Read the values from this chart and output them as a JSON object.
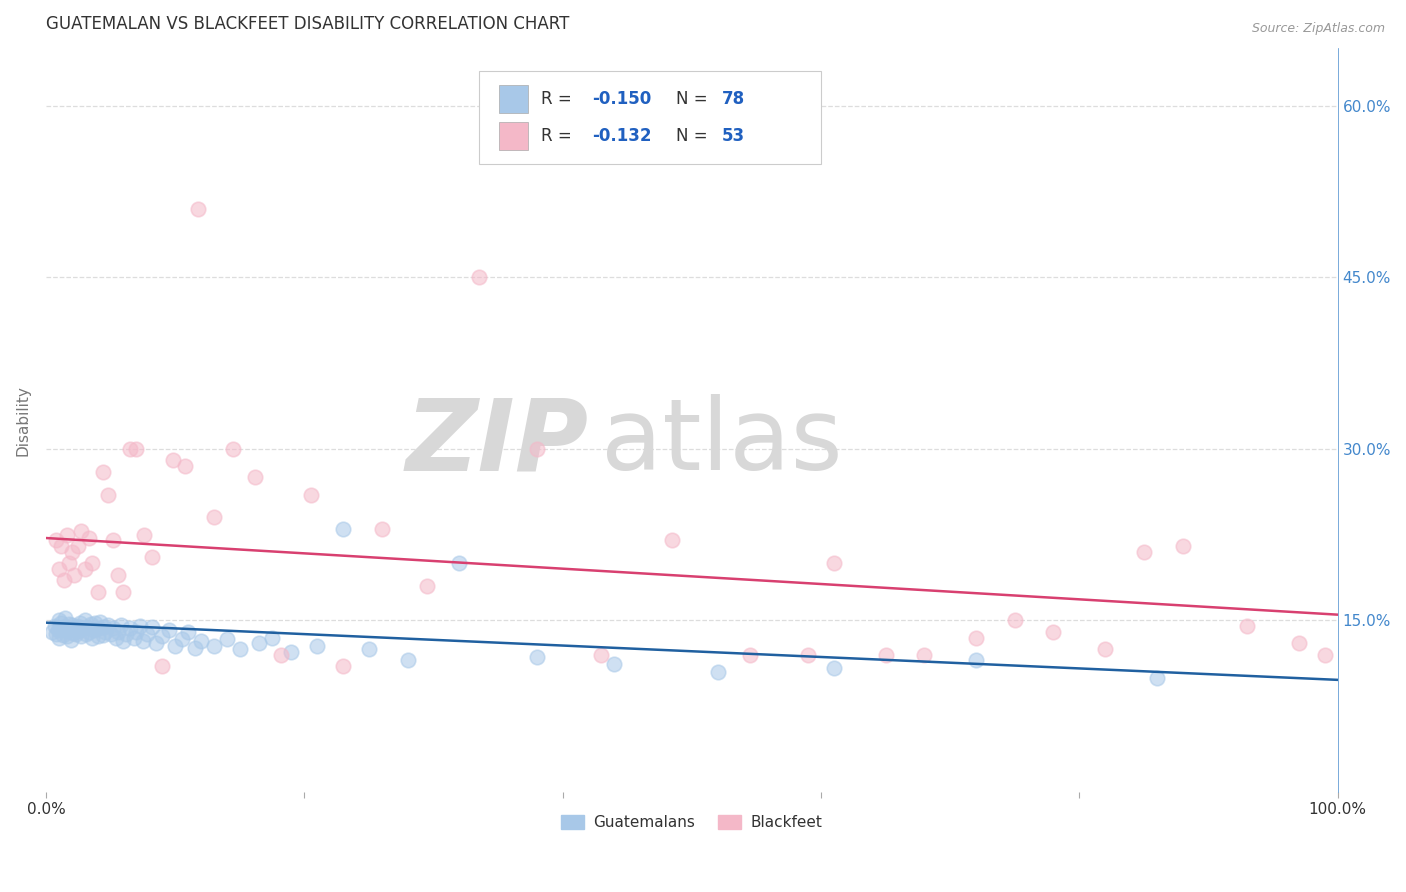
{
  "title": "GUATEMALAN VS BLACKFEET DISABILITY CORRELATION CHART",
  "source": "Source: ZipAtlas.com",
  "ylabel": "Disability",
  "xlim": [
    0.0,
    1.0
  ],
  "ylim": [
    0.0,
    0.65
  ],
  "yticks": [
    0.15,
    0.3,
    0.45,
    0.6
  ],
  "yticklabels_right": [
    "15.0%",
    "30.0%",
    "45.0%",
    "60.0%"
  ],
  "guatemalan_color": "#a8c8e8",
  "blackfeet_color": "#f4b8c8",
  "guatemalan_line_color": "#2060a0",
  "blackfeet_line_color": "#d84070",
  "watermark_zip": "ZIP",
  "watermark_atlas": "atlas",
  "guatemalan_scatter_x": [
    0.005,
    0.007,
    0.008,
    0.009,
    0.01,
    0.01,
    0.011,
    0.012,
    0.013,
    0.014,
    0.015,
    0.016,
    0.017,
    0.018,
    0.019,
    0.02,
    0.021,
    0.022,
    0.023,
    0.024,
    0.025,
    0.026,
    0.027,
    0.028,
    0.03,
    0.031,
    0.032,
    0.033,
    0.035,
    0.036,
    0.037,
    0.038,
    0.04,
    0.041,
    0.042,
    0.044,
    0.045,
    0.046,
    0.048,
    0.05,
    0.052,
    0.054,
    0.056,
    0.058,
    0.06,
    0.062,
    0.065,
    0.068,
    0.07,
    0.073,
    0.075,
    0.078,
    0.082,
    0.085,
    0.09,
    0.095,
    0.1,
    0.105,
    0.11,
    0.115,
    0.12,
    0.13,
    0.14,
    0.15,
    0.165,
    0.175,
    0.19,
    0.21,
    0.23,
    0.25,
    0.28,
    0.32,
    0.38,
    0.44,
    0.52,
    0.61,
    0.72,
    0.86
  ],
  "guatemalan_scatter_y": [
    0.14,
    0.145,
    0.138,
    0.142,
    0.15,
    0.135,
    0.143,
    0.148,
    0.137,
    0.144,
    0.152,
    0.136,
    0.141,
    0.147,
    0.133,
    0.146,
    0.139,
    0.143,
    0.138,
    0.145,
    0.141,
    0.148,
    0.136,
    0.143,
    0.15,
    0.138,
    0.144,
    0.14,
    0.147,
    0.135,
    0.142,
    0.148,
    0.136,
    0.143,
    0.149,
    0.137,
    0.144,
    0.14,
    0.146,
    0.138,
    0.143,
    0.135,
    0.14,
    0.146,
    0.132,
    0.138,
    0.143,
    0.135,
    0.14,
    0.145,
    0.132,
    0.138,
    0.144,
    0.13,
    0.136,
    0.142,
    0.128,
    0.134,
    0.14,
    0.126,
    0.132,
    0.128,
    0.134,
    0.125,
    0.13,
    0.135,
    0.122,
    0.128,
    0.23,
    0.125,
    0.115,
    0.2,
    0.118,
    0.112,
    0.105,
    0.108,
    0.115,
    0.1
  ],
  "blackfeet_scatter_x": [
    0.008,
    0.01,
    0.012,
    0.014,
    0.016,
    0.018,
    0.02,
    0.022,
    0.025,
    0.027,
    0.03,
    0.033,
    0.036,
    0.04,
    0.044,
    0.048,
    0.052,
    0.056,
    0.06,
    0.065,
    0.07,
    0.076,
    0.082,
    0.09,
    0.098,
    0.108,
    0.118,
    0.13,
    0.145,
    0.162,
    0.182,
    0.205,
    0.23,
    0.26,
    0.295,
    0.335,
    0.38,
    0.43,
    0.485,
    0.545,
    0.61,
    0.68,
    0.75,
    0.82,
    0.88,
    0.93,
    0.97,
    0.99,
    0.85,
    0.78,
    0.72,
    0.65,
    0.59
  ],
  "blackfeet_scatter_y": [
    0.22,
    0.195,
    0.215,
    0.185,
    0.225,
    0.2,
    0.21,
    0.19,
    0.215,
    0.228,
    0.195,
    0.222,
    0.2,
    0.175,
    0.28,
    0.26,
    0.22,
    0.19,
    0.175,
    0.3,
    0.3,
    0.225,
    0.205,
    0.11,
    0.29,
    0.285,
    0.51,
    0.24,
    0.3,
    0.275,
    0.12,
    0.26,
    0.11,
    0.23,
    0.18,
    0.45,
    0.3,
    0.12,
    0.22,
    0.12,
    0.2,
    0.12,
    0.15,
    0.125,
    0.215,
    0.145,
    0.13,
    0.12,
    0.21,
    0.14,
    0.135,
    0.12,
    0.12
  ],
  "guatemalan_trend_x": [
    0.0,
    1.0
  ],
  "guatemalan_trend_y": [
    0.148,
    0.098
  ],
  "blackfeet_trend_x": [
    0.0,
    1.0
  ],
  "blackfeet_trend_y": [
    0.222,
    0.155
  ],
  "background_color": "#ffffff",
  "grid_color": "#dddddd",
  "title_color": "#333333",
  "axis_label_color": "#777777",
  "right_axis_color": "#4488cc",
  "legend_text_color": "#333333",
  "legend_value_color": "#2060c0"
}
